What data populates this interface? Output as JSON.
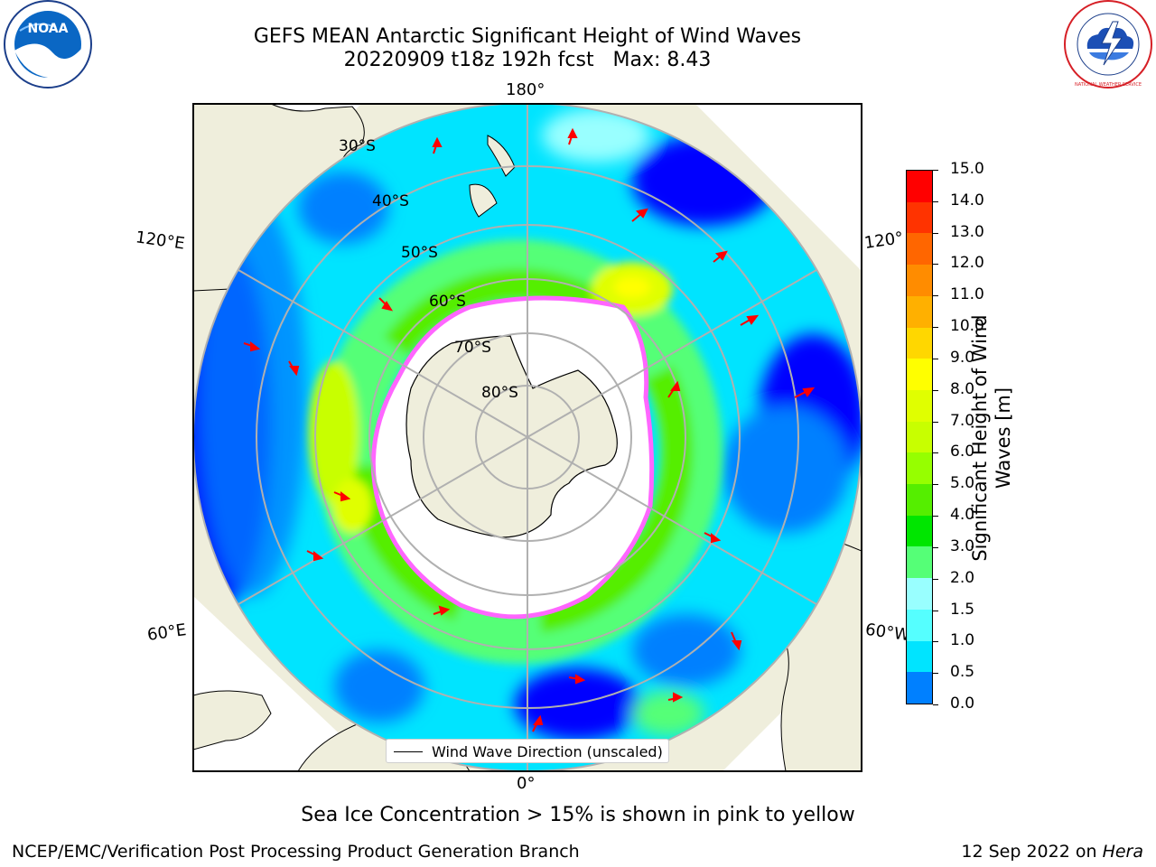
{
  "header": {
    "title_line1": "GEFS MEAN Antarctic Significant Height of Wind Waves",
    "title_line2": "20220909 t18z 192h fcst   Max: 8.43"
  },
  "map": {
    "projection": "south-polar-stereographic",
    "lon_labels": {
      "top": "180°",
      "bottom": "0°",
      "left_upper": "120°E",
      "left_lower": "60°E",
      "right_upper": "120°",
      "right_lower": "60°W"
    },
    "lat_labels": [
      "30°S",
      "40°S",
      "50°S",
      "60°S",
      "70°S",
      "80°S"
    ],
    "legend_text": "Wind Wave Direction (unscaled)",
    "colors": {
      "land": "#efeedc",
      "ocean_calm": "#0000ff",
      "sea_ice": "#ff66ff",
      "arrows": "#ff0000"
    }
  },
  "colorbar": {
    "label": "Significant Height of Wind Waves [m]",
    "ticks": [
      "15.0",
      "14.0",
      "13.0",
      "12.0",
      "11.0",
      "10.0",
      "9.0",
      "8.0",
      "7.0",
      "6.0",
      "5.0",
      "4.0",
      "3.0",
      "2.0",
      "1.5",
      "1.0",
      "0.5",
      "0.0"
    ],
    "colors": [
      "#ff0000",
      "#ff3300",
      "#ff6600",
      "#ff8c00",
      "#ffb000",
      "#ffd700",
      "#ffff00",
      "#e0ff00",
      "#c8ff00",
      "#96ff00",
      "#55ee00",
      "#00e600",
      "#55ff77",
      "#99ffff",
      "#55ffff",
      "#00e4ff",
      "#0080ff",
      "#0000ff"
    ]
  },
  "logos": {
    "noaa": {
      "text": "NOAA"
    },
    "nws": {
      "text": "NATIONAL WEATHER SERVICE"
    }
  },
  "footer": {
    "note": "Sea Ice Concentration > 15% is shown in pink to yellow",
    "left": "NCEP/EMC/Verification Post Processing Product Generation Branch",
    "right_date": "12 Sep 2022 on ",
    "right_host": "Hera"
  }
}
